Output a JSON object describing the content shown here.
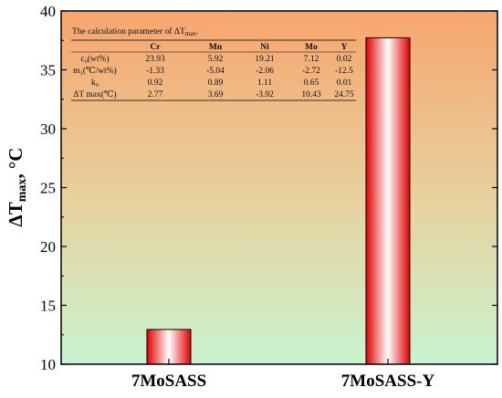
{
  "chart_data": {
    "type": "bar",
    "categories": [
      "7MoSASS",
      "7MoSASS-Y"
    ],
    "values": [
      12.95,
      37.72
    ],
    "xlabel": "",
    "ylabel": "ΔT",
    "ylabel_sub": "max",
    "ylabel_unit": ", °C",
    "ylim": [
      10,
      40
    ],
    "yticks": [
      "10",
      "15",
      "20",
      "25",
      "30",
      "35",
      "40"
    ],
    "ytick_values": [
      10,
      15,
      20,
      25,
      30,
      35,
      40
    ],
    "grid": false,
    "legend": "none",
    "colors": {
      "bar_edge": "#e00000",
      "bar_center": "#ffffff",
      "background_top": "#f7a56e",
      "background_bottom": "#c9f3cf"
    }
  },
  "inset_table": {
    "caption": "The calculation parameter of ΔT",
    "caption_sub": "max",
    "caption_end": ".",
    "header": [
      "",
      "Cr",
      "Mn",
      "Ni",
      "Mo",
      "Y"
    ],
    "rows": [
      [
        "c₀(wt%)",
        "23.93",
        "5.92",
        "19.21",
        "7.12",
        "0.02"
      ],
      [
        "m₁(℃/wt%)",
        "-1.33",
        "-5.04",
        "-2.06",
        "-2.72",
        "-12.5"
      ],
      [
        "k₀",
        "0.92",
        "0.89",
        "1.11",
        "0.65",
        "0.01"
      ],
      [
        "ΔT max(℃)",
        "2.77",
        "3.69",
        "-3.92",
        "10.43",
        "24.75"
      ]
    ]
  }
}
